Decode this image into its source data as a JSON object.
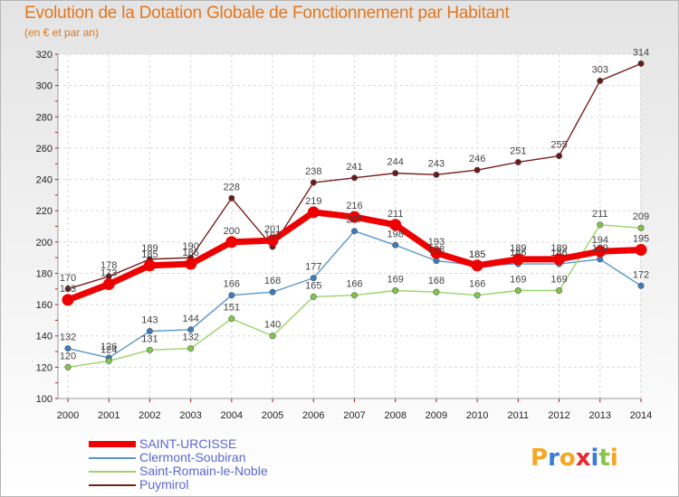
{
  "header": {
    "title": "Evolution de la Dotation Globale de Fonctionnement par Habitant",
    "subtitle": "(en € et par an)"
  },
  "logo": {
    "text": "Proxiti",
    "colors": [
      "#f5a623",
      "#3a7bd5",
      "#f5a623",
      "#e8262d",
      "#3a7bd5",
      "#8bc34a",
      "#f5a623"
    ]
  },
  "chart_data": {
    "type": "line",
    "x": [
      2000,
      2001,
      2002,
      2003,
      2004,
      2005,
      2006,
      2007,
      2008,
      2009,
      2010,
      2011,
      2012,
      2013,
      2014
    ],
    "ylim": [
      100,
      320
    ],
    "yticks": [
      100,
      120,
      140,
      160,
      180,
      200,
      220,
      240,
      260,
      280,
      300,
      320
    ],
    "grid": true,
    "legend_position": "bottom-left",
    "series": [
      {
        "name": "Puymirol",
        "color": "#7a1e1e",
        "width": 1.4,
        "marker": "#6b1a1a",
        "values": [
          170,
          178,
          189,
          190,
          228,
          197,
          238,
          241,
          244,
          243,
          246,
          251,
          255,
          303,
          314
        ],
        "labels": [
          "170",
          "178",
          "189",
          "190",
          "228",
          "197",
          "238",
          "241",
          "244",
          "243",
          "246",
          "251",
          "255",
          "303",
          "314"
        ]
      },
      {
        "name": "Clermont-Soubiran",
        "color": "#5a96c8",
        "width": 1.4,
        "marker": "#3a7dc0",
        "values": [
          132,
          126,
          143,
          144,
          166,
          168,
          177,
          207,
          198,
          188,
          185,
          186,
          186,
          189,
          172
        ],
        "labels": [
          "132",
          "126",
          "143",
          "144",
          "166",
          "168",
          "177",
          "207",
          "198",
          "188",
          "185",
          "186",
          "186",
          "189",
          "172"
        ]
      },
      {
        "name": "Saint-Romain-le-Noble",
        "color": "#9ad46a",
        "width": 1.4,
        "marker": "#7fc94a",
        "values": [
          120,
          124,
          131,
          132,
          151,
          140,
          165,
          166,
          169,
          168,
          166,
          169,
          169,
          211,
          209
        ],
        "labels": [
          "120",
          "124",
          "131",
          "132",
          "151",
          "140",
          "165",
          "166",
          "169",
          "168",
          "166",
          "169",
          "169",
          "211",
          "209"
        ]
      },
      {
        "name": "SAINT-URCISSE",
        "color": "#ee0000",
        "width": 7,
        "marker": "#ee0000",
        "values": [
          163,
          173,
          185,
          186,
          200,
          201,
          219,
          216,
          211,
          193,
          185,
          189,
          189,
          194,
          195
        ],
        "labels": [
          "163",
          "173",
          "185",
          "186",
          "200",
          "201",
          "219",
          "216",
          "211",
          "193",
          "185",
          "189",
          "189",
          "194",
          "195"
        ]
      }
    ]
  }
}
